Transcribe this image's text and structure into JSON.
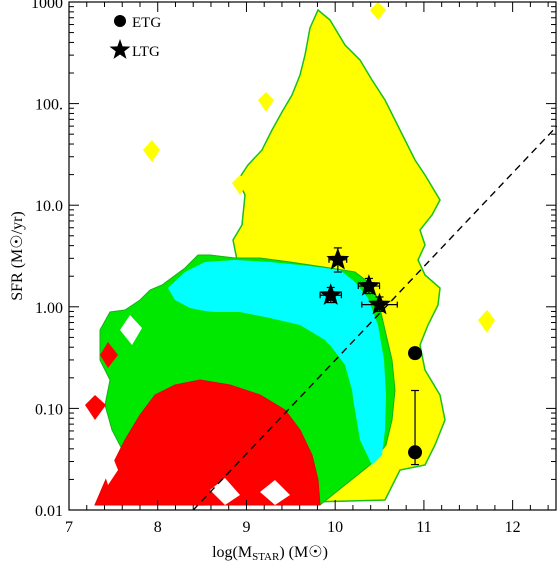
{
  "chart_data": {
    "type": "scatter",
    "xlabel": "log(M",
    "xlabel_sub": "STAR",
    "xlabel_tail": ") (M",
    "xlabel_end": ")",
    "ylabel": "SFR (M",
    "ylabel_tail": "/yr)",
    "xlim": [
      7,
      12.5
    ],
    "ylim": [
      0.01,
      1000
    ],
    "yscale": "log",
    "x_ticks": [
      "7",
      "8",
      "9",
      "10",
      "11",
      "12"
    ],
    "y_ticks": [
      "0.01",
      "0.10",
      "1.00",
      "10.0",
      "100.",
      "1000"
    ],
    "legend_position": "top-left",
    "legend": [
      {
        "label": "ETG",
        "marker": "circle"
      },
      {
        "label": "LTG",
        "marker": "star"
      }
    ],
    "colors": {
      "red": "#ff0000",
      "green": "#00e800",
      "cyan": "#00ffff",
      "yellow": "#ffff00",
      "markers": "#000000"
    },
    "density_levels": [
      "red",
      "green",
      "cyan",
      "yellow"
    ],
    "reference_line": {
      "style": "dashed",
      "x": [
        8.4,
        12.5
      ],
      "y": [
        0.01,
        60
      ]
    },
    "series": [
      {
        "name": "ETG",
        "marker": "circle",
        "points": [
          {
            "x": 10.9,
            "y": 0.35
          },
          {
            "x": 10.9,
            "y": 0.037,
            "yerr_low": 0.028,
            "yerr_high": 0.15
          }
        ]
      },
      {
        "name": "LTG",
        "marker": "star",
        "points": [
          {
            "x": 10.03,
            "y": 2.9,
            "xerr": 0.1,
            "yerr_low": 2.2,
            "yerr_high": 3.8
          },
          {
            "x": 9.95,
            "y": 1.3,
            "xerr": 0.12,
            "yerr_low": 1.1,
            "yerr_high": 1.55
          },
          {
            "x": 10.38,
            "y": 1.6,
            "xerr": 0.12,
            "yerr_low": 1.35,
            "yerr_high": 1.9
          },
          {
            "x": 10.5,
            "y": 1.05,
            "xerr": 0.2,
            "yerr_low": 0.9,
            "yerr_high": 1.25
          }
        ]
      }
    ]
  }
}
